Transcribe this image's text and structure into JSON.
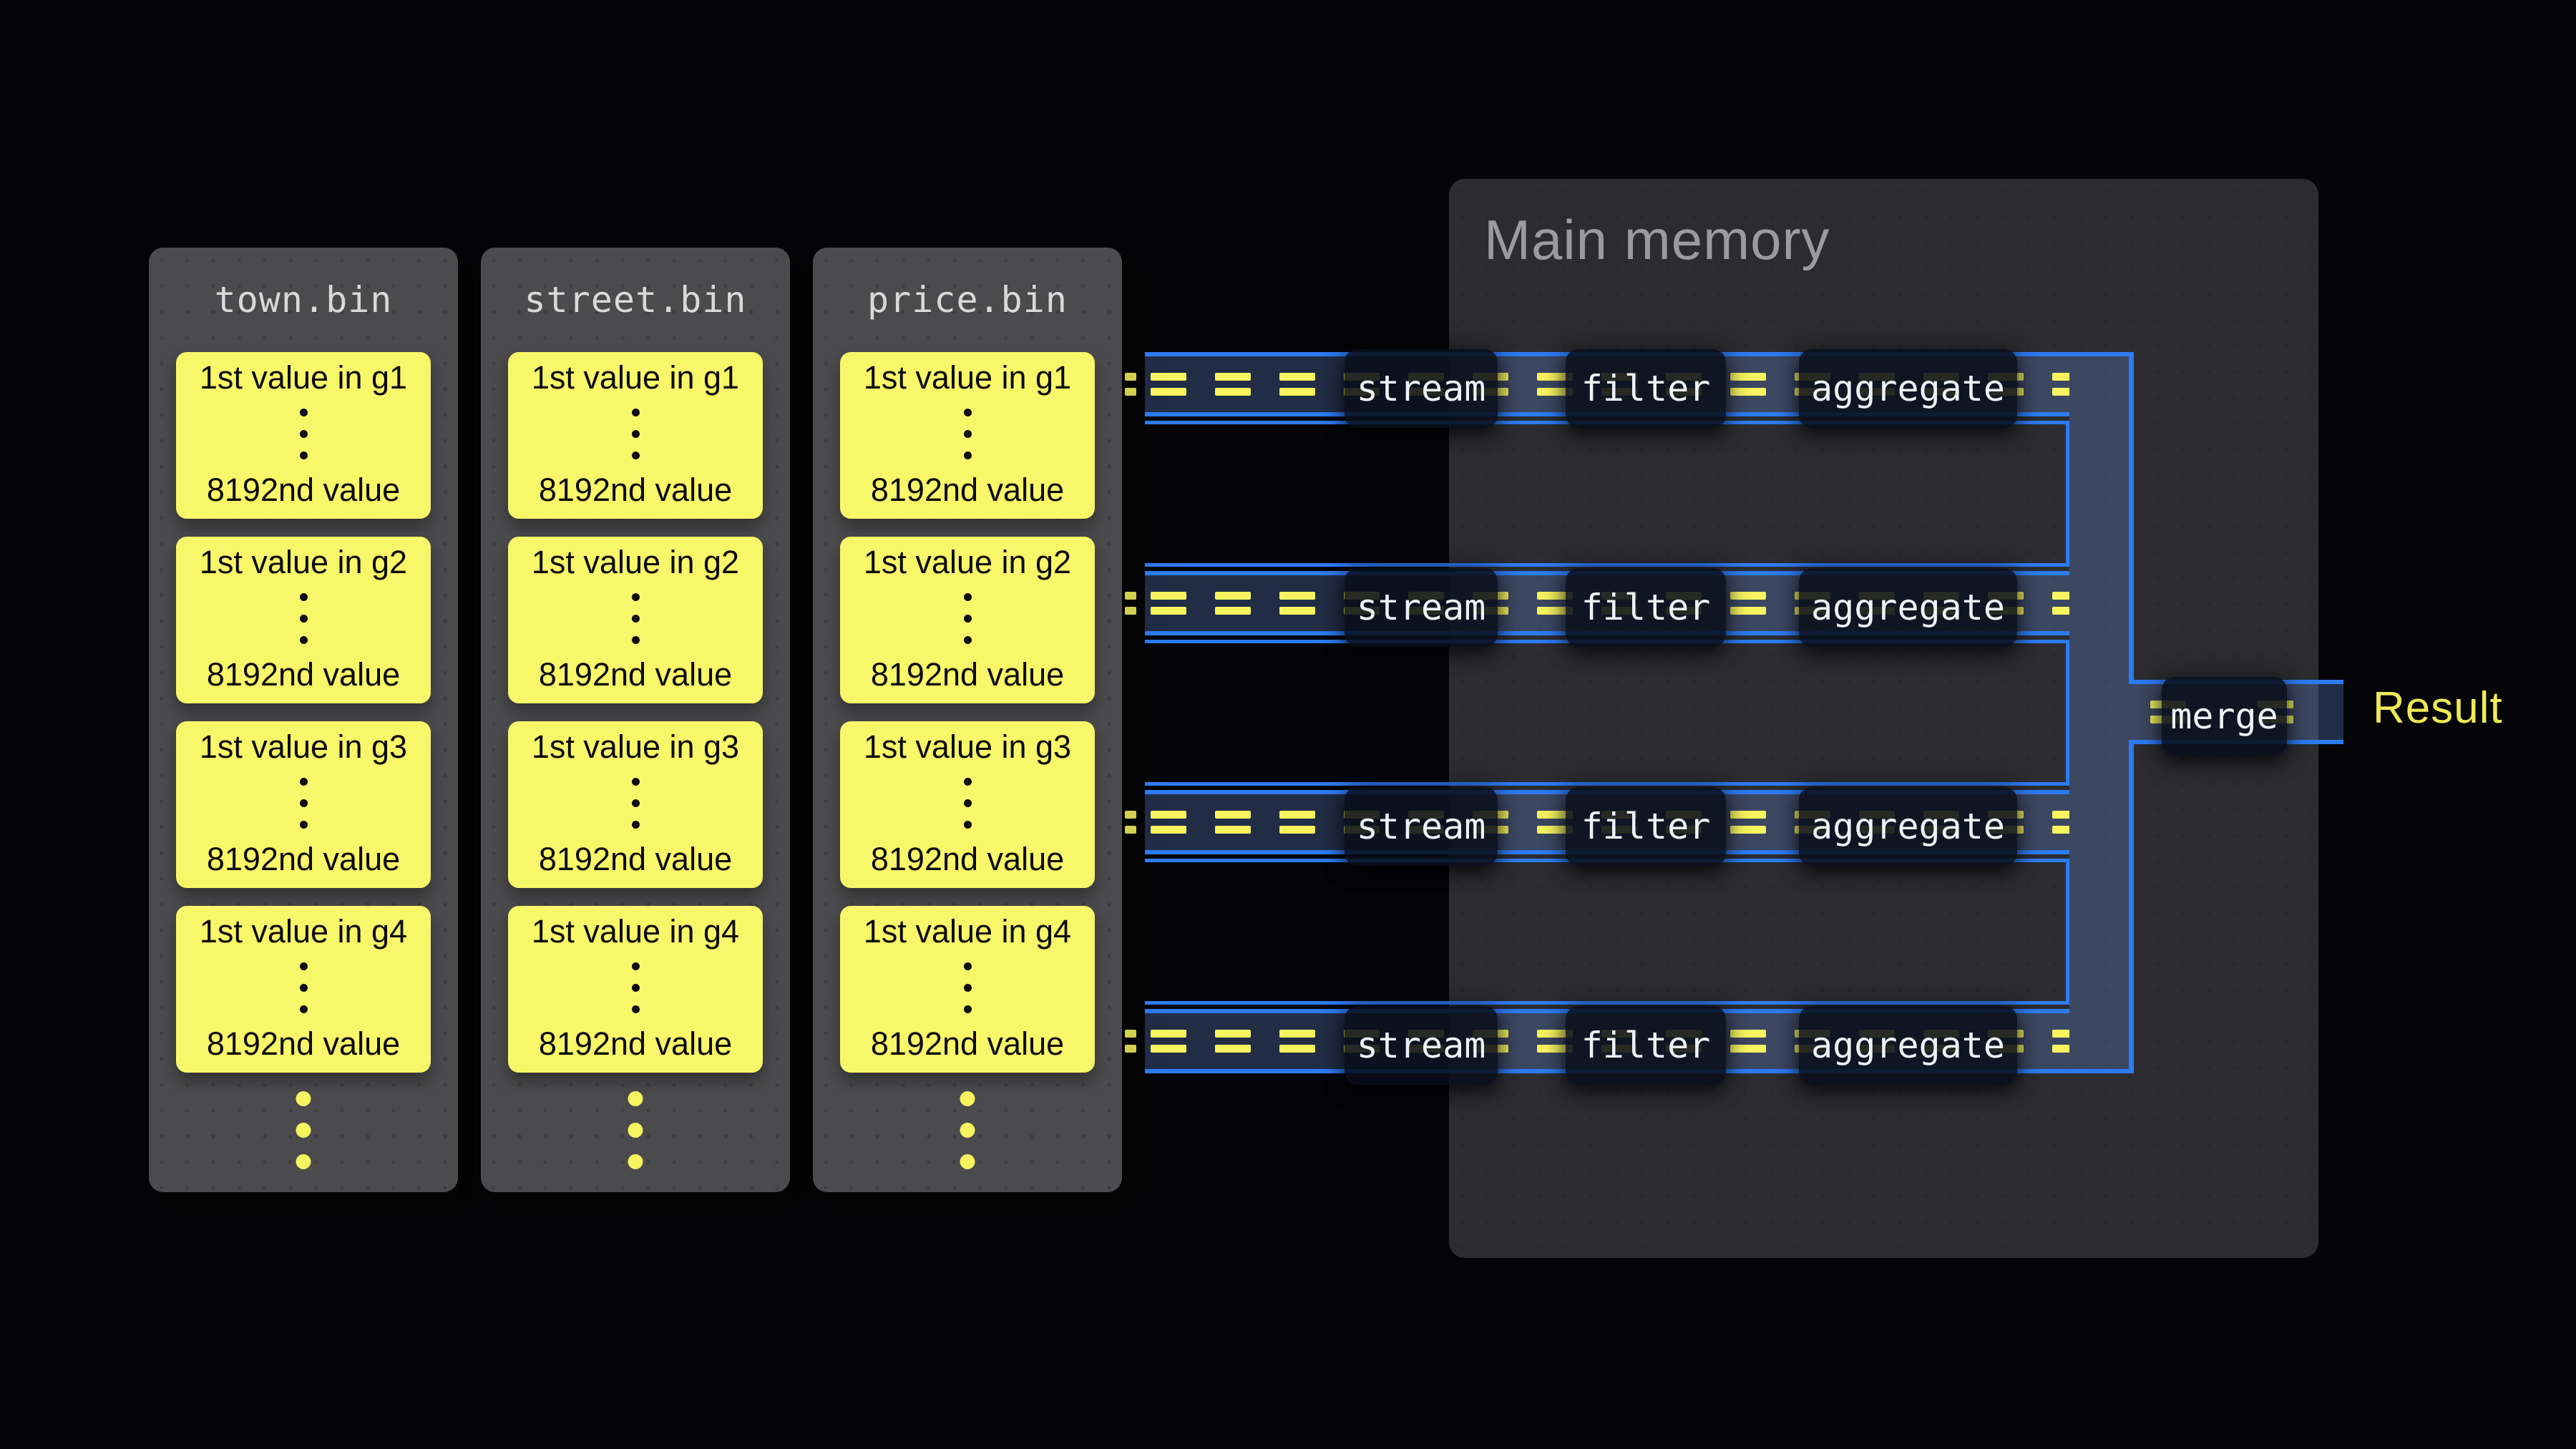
{
  "files": [
    {
      "title": "town.bin",
      "groups": [
        {
          "top": "1st value in g1",
          "bottom": "8192nd value"
        },
        {
          "top": "1st value in g2",
          "bottom": "8192nd value"
        },
        {
          "top": "1st value in g3",
          "bottom": "8192nd value"
        },
        {
          "top": "1st value in g4",
          "bottom": "8192nd value"
        }
      ]
    },
    {
      "title": "street.bin",
      "groups": [
        {
          "top": "1st value in g1",
          "bottom": "8192nd value"
        },
        {
          "top": "1st value in g2",
          "bottom": "8192nd value"
        },
        {
          "top": "1st value in g3",
          "bottom": "8192nd value"
        },
        {
          "top": "1st value in g4",
          "bottom": "8192nd value"
        }
      ]
    },
    {
      "title": "price.bin",
      "groups": [
        {
          "top": "1st value in g1",
          "bottom": "8192nd value"
        },
        {
          "top": "1st value in g2",
          "bottom": "8192nd value"
        },
        {
          "top": "1st value in g3",
          "bottom": "8192nd value"
        },
        {
          "top": "1st value in g4",
          "bottom": "8192nd value"
        }
      ]
    }
  ],
  "memory": {
    "title": "Main memory"
  },
  "pipelines": {
    "lanes": 4,
    "stages": [
      "stream",
      "filter",
      "aggregate"
    ]
  },
  "merge": {
    "label": "merge"
  },
  "result": {
    "label": "Result"
  },
  "colors": {
    "accent_blue": "#2d7bf2",
    "chunk_yellow": "#f7f45f",
    "cell_yellow": "#f8f669",
    "memory_fill": "#2c2c30"
  }
}
